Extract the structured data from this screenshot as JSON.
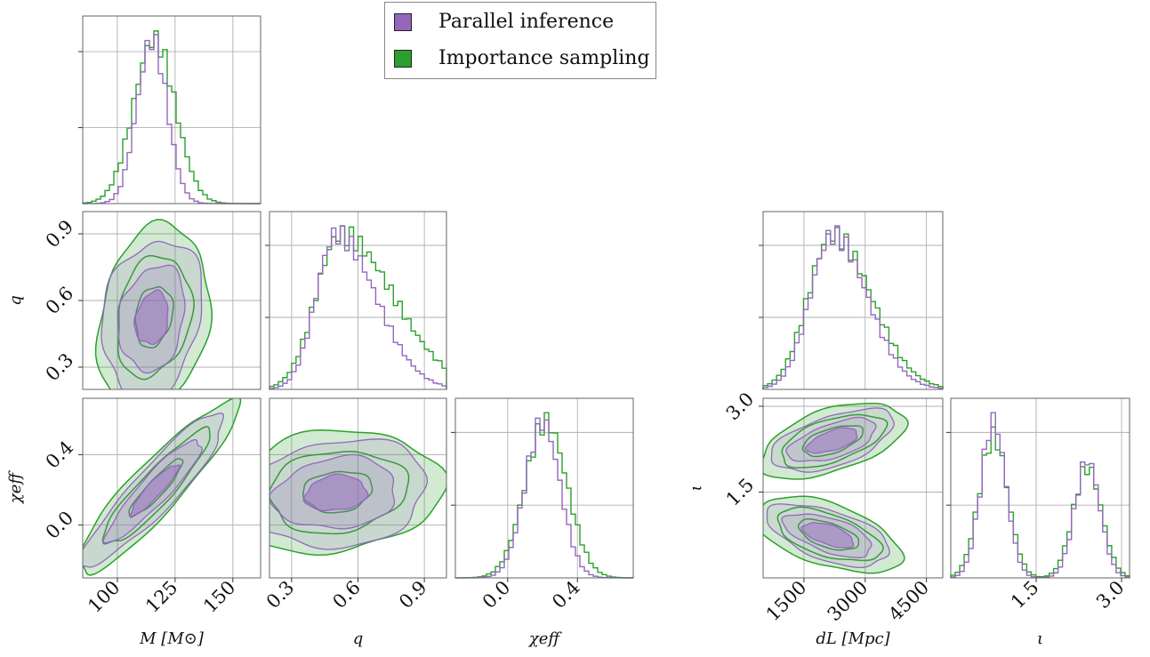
{
  "chart_data": {
    "type": "corner",
    "legend_placement": "top-center",
    "grid": true,
    "series": [
      {
        "name": "Parallel inference",
        "color": "#9467bd"
      },
      {
        "name": "Importance sampling",
        "color": "#2ca02c"
      }
    ],
    "colors": {
      "parallel": "#9467bd",
      "importance": "#2ca02c",
      "grid": "#b0b0b0"
    },
    "parameters": [
      {
        "key": "M",
        "label": "M [M⊙]",
        "range": [
          85,
          162
        ],
        "ticks": [
          100,
          125,
          150
        ],
        "tick_labels": [
          "100",
          "125",
          "150"
        ]
      },
      {
        "key": "q",
        "label": "q",
        "range": [
          0.2,
          1.0
        ],
        "ticks": [
          0.3,
          0.6,
          0.9
        ],
        "tick_labels": [
          "0.3",
          "0.6",
          "0.9"
        ]
      },
      {
        "key": "chi_eff",
        "label": "χeff",
        "range": [
          -0.3,
          0.72
        ],
        "ticks": [
          0.0,
          0.4
        ],
        "tick_labels": [
          "0.0",
          "0.4"
        ]
      },
      {
        "key": "d_L",
        "label": "dL [Mpc]",
        "range": [
          500,
          4900
        ],
        "ticks": [
          1500,
          3000,
          4500
        ],
        "tick_labels": [
          "1500",
          "3000",
          "4500"
        ]
      },
      {
        "key": "iota",
        "label": "ι",
        "range": [
          0.0,
          3.14
        ],
        "ticks": [
          1.5,
          3.0
        ],
        "tick_labels": [
          "1.5",
          "3.0"
        ]
      }
    ],
    "y_tick_labels": {
      "q": [
        "0.3",
        "0.6",
        "0.9"
      ],
      "chi_eff": [
        "0.0",
        "0.4"
      ],
      "iota": [
        "1.5",
        "3.0"
      ]
    },
    "marginals": [
      {
        "param": "M",
        "parallel": {
          "mean": 115,
          "sd": 6.5
        },
        "importance": {
          "mean": 116,
          "sd": 9
        }
      },
      {
        "param": "q",
        "parallel": {
          "mode": 0.5,
          "sd_low": 0.09,
          "sd_high": 0.18
        },
        "importance": {
          "mode": 0.52,
          "sd_low": 0.11,
          "sd_high": 0.24
        }
      },
      {
        "param": "chi_eff",
        "parallel": {
          "mean": 0.2,
          "sd": 0.1
        },
        "importance": {
          "mean": 0.22,
          "sd": 0.12
        }
      },
      {
        "param": "d_L",
        "parallel": {
          "mode": 2200,
          "sd_low": 550,
          "sd_high": 850
        },
        "importance": {
          "mode": 2200,
          "sd_low": 600,
          "sd_high": 950
        }
      },
      {
        "param": "iota",
        "parallel": {
          "peaks": [
            0.75,
            2.4
          ],
          "sd": 0.22,
          "weights": [
            1.0,
            0.75
          ]
        },
        "importance": {
          "peaks": [
            0.75,
            2.4
          ],
          "sd": 0.25,
          "weights": [
            0.9,
            0.7
          ]
        }
      }
    ],
    "joint_2d": [
      {
        "x": "M",
        "y": "q",
        "center": [
          115,
          0.52
        ],
        "spread": [
          7,
          0.12
        ],
        "correlation": -0.2
      },
      {
        "x": "M",
        "y": "chi_eff",
        "center": [
          116,
          0.2
        ],
        "spread": [
          9,
          0.15
        ],
        "correlation": 0.85
      },
      {
        "x": "q",
        "y": "chi_eff",
        "center": [
          0.5,
          0.18
        ],
        "spread": [
          0.14,
          0.1
        ],
        "correlation": 0.35
      },
      {
        "x": "d_L",
        "y": "iota",
        "modes": [
          [
            2200,
            2.4
          ],
          [
            2100,
            0.75
          ]
        ],
        "shape": "sideways-V"
      }
    ]
  }
}
